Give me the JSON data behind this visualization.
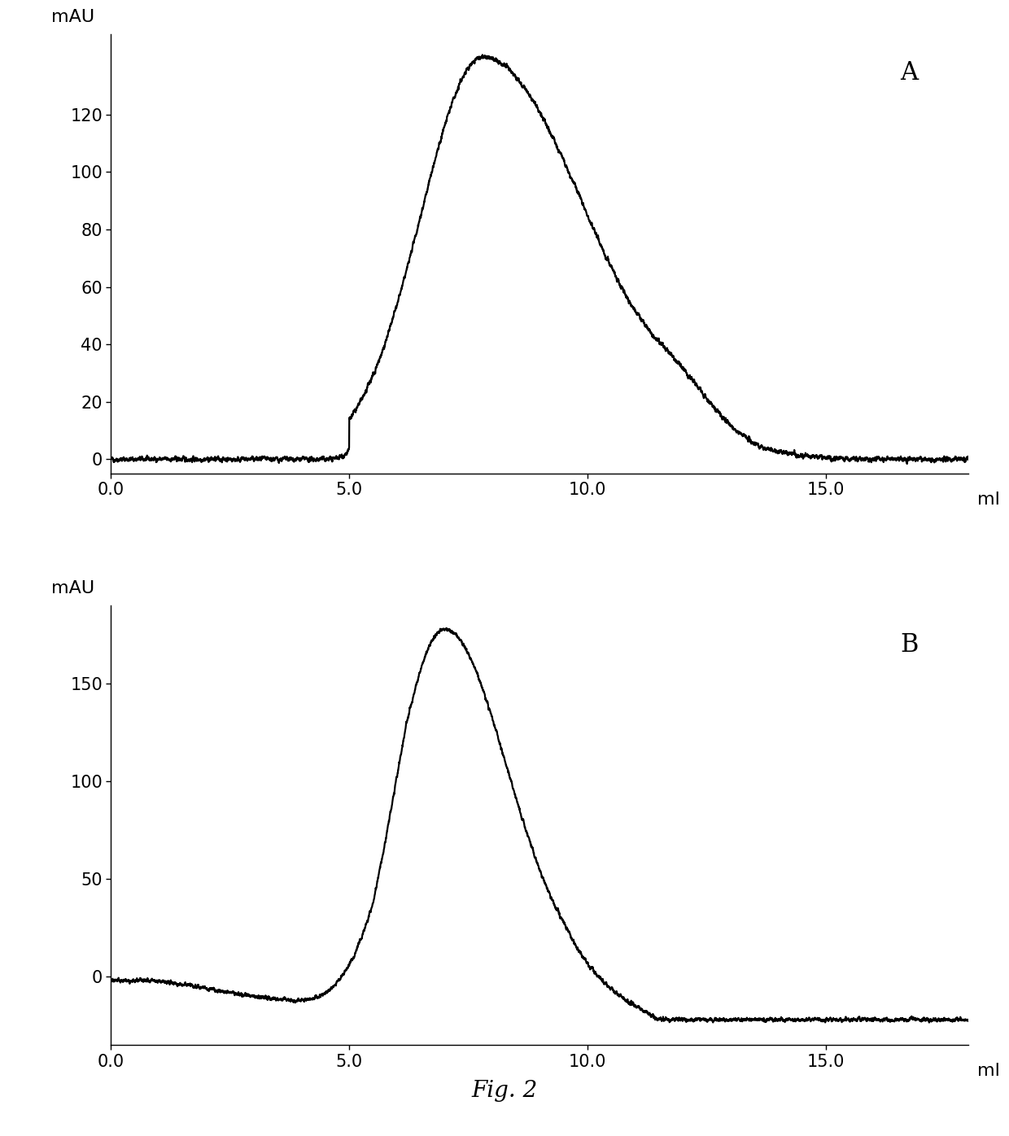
{
  "panel_A": {
    "label": "A",
    "ylabel": "mAU",
    "xlabel": "ml",
    "yticks": [
      0,
      20,
      40,
      60,
      80,
      100,
      120
    ],
    "ylim": [
      -5,
      148
    ],
    "xlim": [
      0.0,
      18.0
    ],
    "xticks": [
      0.0,
      5.0,
      10.0,
      15.0
    ],
    "xticklabels": [
      "0.0",
      "5.0",
      "10.0",
      "15.0"
    ]
  },
  "panel_B": {
    "label": "B",
    "ylabel": "mAU",
    "xlabel": "ml",
    "yticks": [
      0,
      50,
      100,
      150
    ],
    "ylim": [
      -35,
      190
    ],
    "xlim": [
      0.0,
      18.0
    ],
    "xticks": [
      0.0,
      5.0,
      10.0,
      15.0
    ],
    "xticklabels": [
      "0.0",
      "5.0",
      "10.0",
      "15.0"
    ]
  },
  "fig_label": "Fig. 2",
  "line_color": "#000000",
  "line_width": 1.6,
  "background_color": "#ffffff",
  "font_size_ticks": 15,
  "font_size_ylabel": 16,
  "font_size_xlabel": 16,
  "font_size_panel": 22,
  "font_size_fig": 20
}
